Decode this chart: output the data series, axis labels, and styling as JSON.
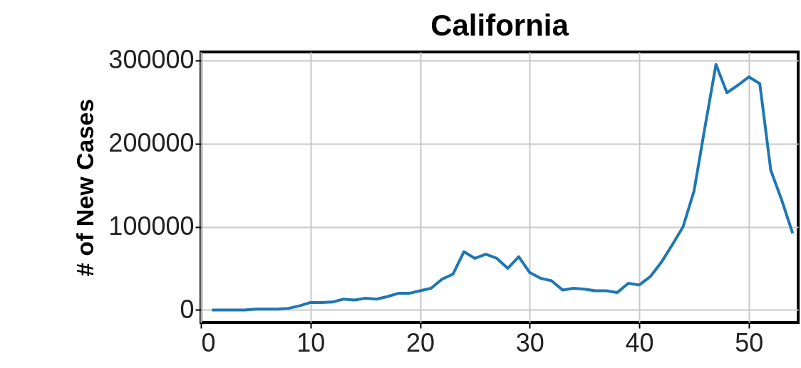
{
  "chart_data": {
    "type": "line",
    "title": "California",
    "ylabel": "# of New Cases",
    "x": [
      1,
      2,
      3,
      4,
      5,
      6,
      7,
      8,
      9,
      10,
      11,
      12,
      13,
      14,
      15,
      16,
      17,
      18,
      19,
      20,
      21,
      22,
      23,
      24,
      25,
      26,
      27,
      28,
      29,
      30,
      31,
      32,
      33,
      34,
      35,
      36,
      37,
      38,
      39,
      40,
      41,
      42,
      43,
      44,
      45,
      46,
      47,
      48,
      49,
      50,
      51,
      52,
      53,
      54
    ],
    "series": [
      {
        "color": "#1f77b4",
        "values": [
          0,
          0,
          0,
          0,
          1000,
          1000,
          1000,
          2000,
          5000,
          9000,
          9000,
          9500,
          13000,
          12000,
          14000,
          13000,
          16000,
          20000,
          20000,
          23000,
          26000,
          37000,
          43000,
          70000,
          62000,
          67000,
          62000,
          50000,
          64000,
          45000,
          38000,
          35000,
          24000,
          26000,
          25000,
          23000,
          23000,
          21000,
          32000,
          30000,
          40000,
          57000,
          78000,
          100000,
          143000,
          220000,
          295000,
          261000,
          270000,
          280000,
          272000,
          168000,
          132000,
          92000
        ]
      }
    ],
    "xlim": [
      0,
      54.5
    ],
    "ylim": [
      -15000,
      310000
    ],
    "xticks": [
      0,
      10,
      20,
      30,
      40,
      50
    ],
    "yticks": [
      0,
      100000,
      200000,
      300000
    ],
    "grid": true,
    "legend": false,
    "marker": "none",
    "line_style": "solid"
  }
}
